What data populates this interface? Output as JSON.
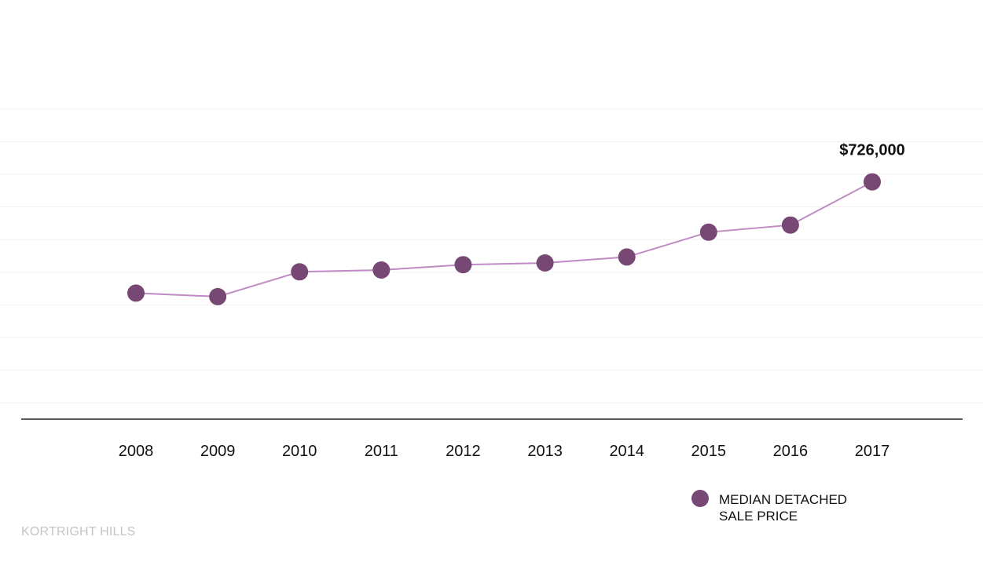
{
  "chart_data": {
    "type": "line",
    "x": [
      "2008",
      "2009",
      "2010",
      "2011",
      "2012",
      "2013",
      "2014",
      "2015",
      "2016",
      "2017"
    ],
    "series": [
      {
        "name": "MEDIAN DETACHED SALE PRICE",
        "values": [
          538000,
          532000,
          574000,
          577000,
          586000,
          589000,
          599000,
          641000,
          653000,
          726000
        ]
      }
    ],
    "annotations": [
      {
        "x": "2017",
        "text": "$726,000"
      }
    ],
    "ylim": [
      325000,
      906000
    ],
    "grid": true,
    "legend": "bottom-right",
    "colors": {
      "line": "#c08ac4",
      "marker": "#774874",
      "grid": "#f1f1f1",
      "axis": "#222222"
    }
  },
  "footer": {
    "label": "KORTRIGHT HILLS"
  }
}
